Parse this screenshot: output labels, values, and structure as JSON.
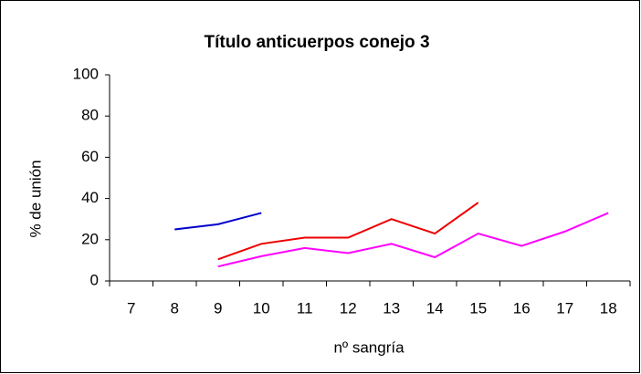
{
  "chart_data": {
    "type": "line",
    "title": "Título anticuerpos conejo 3",
    "x_label": "nº sangría",
    "y_label": "% de unión",
    "categories": [
      "7",
      "8",
      "9",
      "10",
      "11",
      "12",
      "13",
      "14",
      "15",
      "16",
      "17",
      "18"
    ],
    "series": [
      {
        "color": "#0000cc",
        "values": [
          null,
          25,
          27.5,
          33,
          null,
          null,
          null,
          null,
          null,
          null,
          null,
          null
        ]
      },
      {
        "color": "#ee0000",
        "values": [
          null,
          null,
          10.5,
          18,
          21,
          21,
          30,
          23,
          38,
          null,
          null,
          null
        ]
      },
      {
        "color": "#ff00ff",
        "values": [
          null,
          null,
          7,
          12,
          16,
          13.5,
          18,
          11.5,
          23,
          17,
          24,
          33
        ]
      }
    ],
    "ylim": [
      0,
      100
    ],
    "yticks": [
      0,
      20,
      40,
      60,
      80,
      100
    ]
  }
}
